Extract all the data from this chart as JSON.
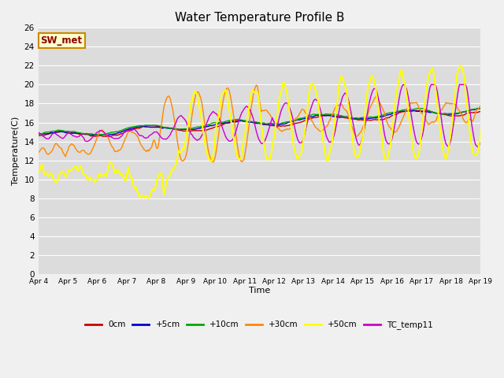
{
  "title": "Water Temperature Profile B",
  "xlabel": "Time",
  "ylabel": "Temperature(C)",
  "ylim": [
    0,
    26
  ],
  "yticks": [
    0,
    2,
    4,
    6,
    8,
    10,
    12,
    14,
    16,
    18,
    20,
    22,
    24,
    26
  ],
  "xtick_labels": [
    "Apr 4",
    "Apr 5",
    "Apr 6",
    "Apr 7",
    "Apr 8",
    "Apr 9",
    "Apr 10",
    "Apr 11",
    "Apr 12",
    "Apr 13",
    "Apr 14",
    "Apr 15",
    "Apr 16",
    "Apr 17",
    "Apr 18",
    "Apr 19"
  ],
  "background_color": "#dcdcdc",
  "plot_bg_color": "#dcdcdc",
  "fig_bg_color": "#f0f0f0",
  "annotation_text": "SW_met",
  "annotation_color": "#8b0000",
  "annotation_bg": "#ffffcc",
  "annotation_edge": "#cc8800",
  "lines": {
    "0cm": {
      "color": "#cc0000",
      "lw": 1.0,
      "zorder": 3
    },
    "+5cm": {
      "color": "#0000cc",
      "lw": 1.0,
      "zorder": 3
    },
    "+10cm": {
      "color": "#00aa00",
      "lw": 1.0,
      "zorder": 3
    },
    "+30cm": {
      "color": "#ff8800",
      "lw": 1.0,
      "zorder": 3
    },
    "+50cm": {
      "color": "#ffff00",
      "lw": 1.5,
      "zorder": 4
    },
    "TC_temp11": {
      "color": "#cc00cc",
      "lw": 1.0,
      "zorder": 3
    }
  },
  "legend_order": [
    "0cm",
    "+5cm",
    "+10cm",
    "+30cm",
    "+50cm",
    "TC_temp11"
  ]
}
